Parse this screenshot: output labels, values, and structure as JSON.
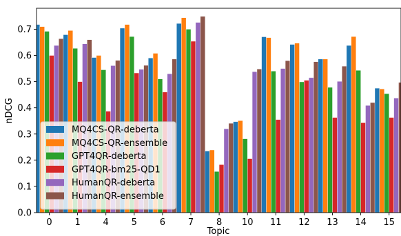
{
  "chart_data": {
    "type": "bar",
    "title": "",
    "xlabel": "Topic",
    "ylabel": "nDCG",
    "ylim": [
      0,
      0.78
    ],
    "yticks": [
      "0.0",
      "0.1",
      "0.2",
      "0.3",
      "0.4",
      "0.5",
      "0.6",
      "0.7"
    ],
    "categories": [
      "0",
      "1",
      "4",
      "5",
      "6",
      "7",
      "8",
      "10",
      "11",
      "12",
      "13",
      "14",
      "15"
    ],
    "legend_position": "lower-left",
    "grid": false,
    "series": [
      {
        "name": "MQ4CS-QR-deberta",
        "color": "#1f77b4",
        "values": [
          0.718,
          0.679,
          0.592,
          0.704,
          0.59,
          0.722,
          0.235,
          0.347,
          0.671,
          0.642,
          0.586,
          0.638,
          0.475
        ]
      },
      {
        "name": "MQ4CS-QR-ensemble",
        "color": "#ff7f0e",
        "values": [
          0.71,
          0.695,
          0.6,
          0.718,
          0.608,
          0.744,
          0.239,
          0.351,
          0.668,
          0.647,
          0.586,
          0.672,
          0.472
        ]
      },
      {
        "name": "GPT4QR-deberta",
        "color": "#2ca02c",
        "values": [
          0.692,
          0.627,
          0.545,
          0.672,
          0.51,
          0.7,
          0.157,
          0.282,
          0.54,
          0.499,
          0.478,
          0.543,
          0.454
        ]
      },
      {
        "name": "GPT4QR-bm25-QD1",
        "color": "#d62728",
        "values": [
          0.6,
          0.5,
          0.387,
          0.533,
          0.46,
          0.654,
          0.183,
          0.206,
          0.355,
          0.505,
          0.363,
          0.343,
          0.363
        ]
      },
      {
        "name": "HumanQR-deberta",
        "color": "#9467bd",
        "values": [
          0.638,
          0.644,
          0.561,
          0.547,
          0.53,
          0.726,
          0.32,
          0.538,
          0.55,
          0.515,
          0.501,
          0.409,
          0.437
        ]
      },
      {
        "name": "HumanQR-ensemble",
        "color": "#8c564b",
        "values": [
          0.664,
          0.66,
          0.581,
          0.562,
          0.586,
          0.749,
          0.341,
          0.548,
          0.58,
          0.576,
          0.559,
          0.42,
          0.497
        ]
      }
    ]
  }
}
